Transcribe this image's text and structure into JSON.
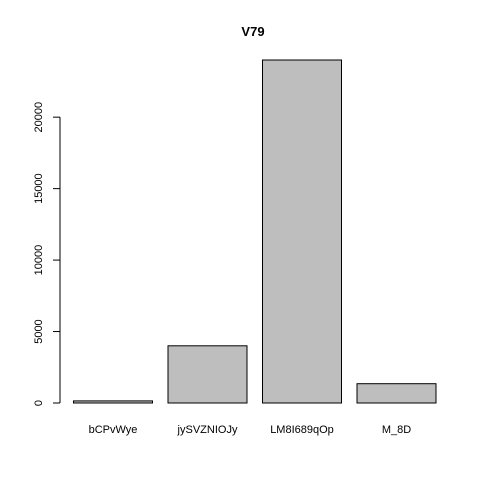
{
  "chart_data": {
    "type": "bar",
    "title": "V79",
    "xlabel": "",
    "ylabel": "",
    "categories": [
      "bCPvWye",
      "jySVZNIOJy",
      "LM8I689qOp",
      "M_8D"
    ],
    "values": [
      150,
      4000,
      24000,
      1350
    ],
    "ylim": [
      0,
      24000
    ],
    "yticks": [
      0,
      5000,
      10000,
      15000,
      20000
    ],
    "ytick_labels": [
      "0",
      "5000",
      "10000",
      "15000",
      "20000"
    ],
    "grid": false,
    "legend": "none",
    "colors": {
      "bar_fill": "#bebebe",
      "bar_stroke": "#000000"
    }
  }
}
